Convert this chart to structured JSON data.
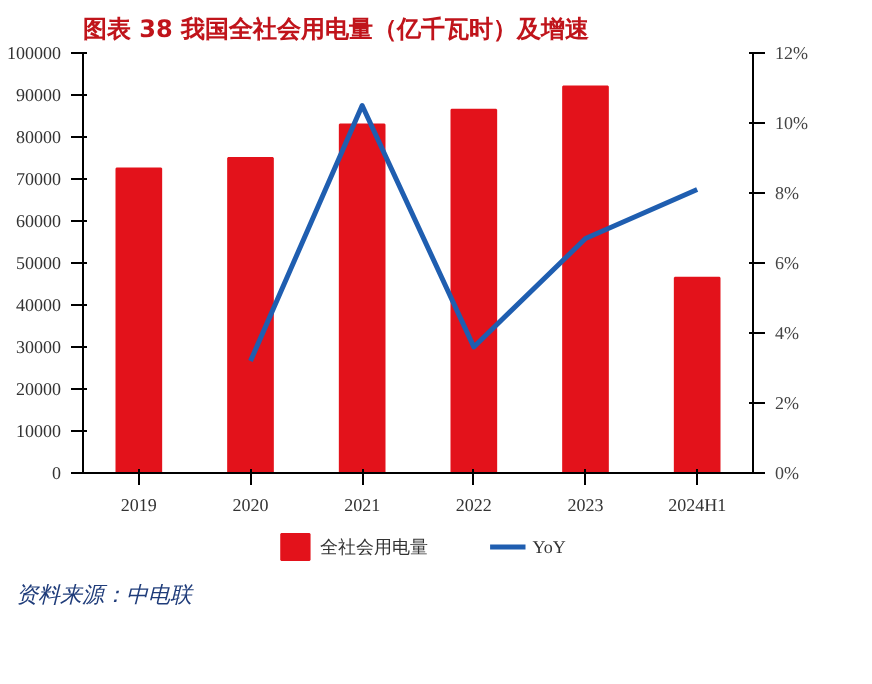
{
  "chart_data": {
    "type": "bar",
    "title": "图表 38   我国全社会用电量（亿千瓦时）及增速",
    "categories": [
      "2019",
      "2020",
      "2021",
      "2022",
      "2023",
      "2024H1"
    ],
    "series": [
      {
        "name": "全社会用电量",
        "color": "#e3121b",
        "values": [
          72500,
          75000,
          83000,
          86500,
          92000,
          46500
        ]
      },
      {
        "name": "YoY",
        "type": "line",
        "axis": "y2",
        "color": "#1f5eb0",
        "values": [
          null,
          3.2,
          10.5,
          3.6,
          6.7,
          8.1
        ]
      }
    ],
    "ylim": [
      0,
      100000
    ],
    "yticks": [
      0,
      10000,
      20000,
      30000,
      40000,
      50000,
      60000,
      70000,
      80000,
      90000,
      100000
    ],
    "y2lim": [
      0,
      12
    ],
    "y2ticks": [
      {
        "value": 0,
        "label": "0%"
      },
      {
        "value": 2,
        "label": "2%"
      },
      {
        "value": 4,
        "label": "4%"
      },
      {
        "value": 6,
        "label": "6%"
      },
      {
        "value": 8,
        "label": "8%"
      },
      {
        "value": 10,
        "label": "10%"
      },
      {
        "value": 12,
        "label": "12%"
      }
    ],
    "legend": "bottom",
    "grid": false,
    "annotations": [
      "资料来源：中电联"
    ]
  }
}
